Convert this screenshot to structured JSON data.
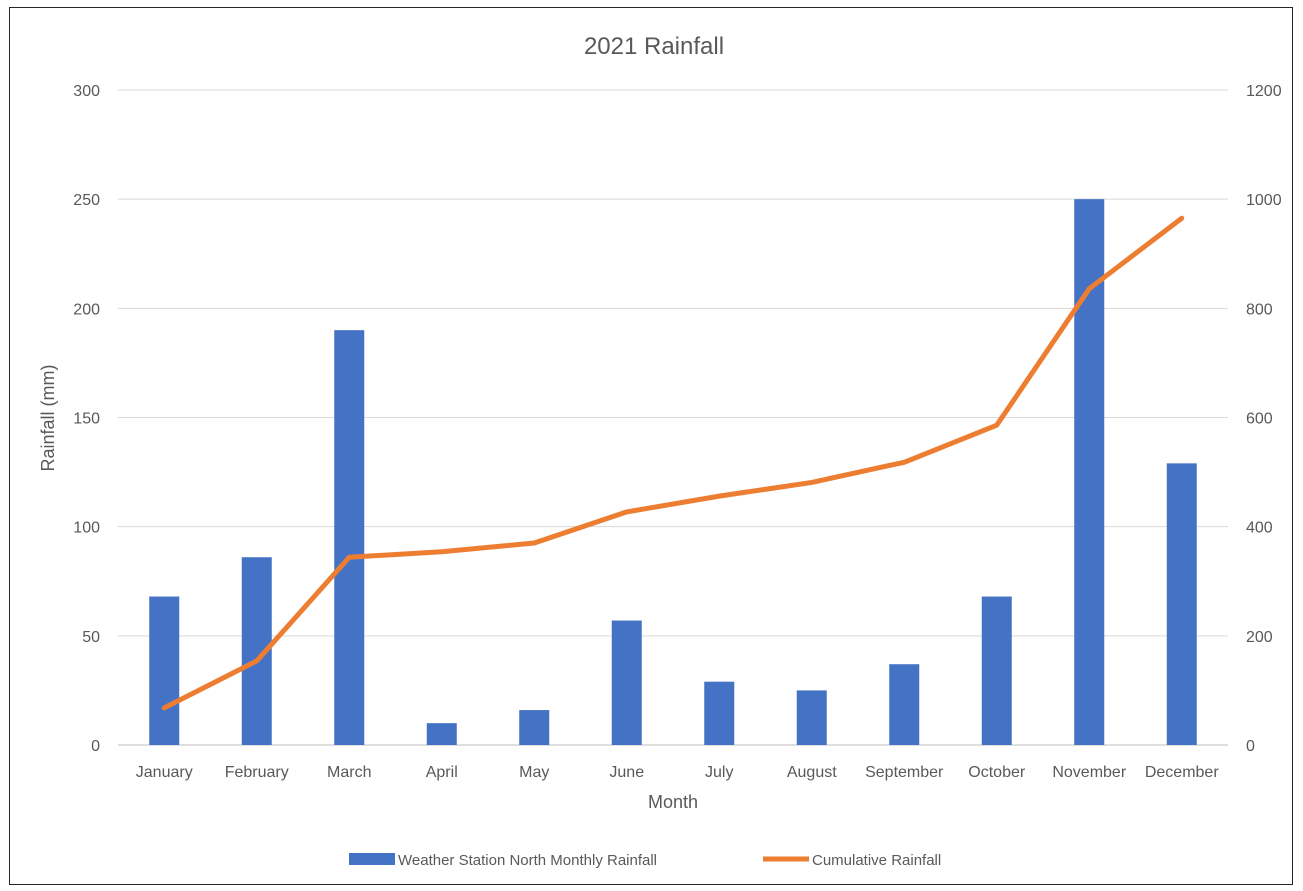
{
  "chart_data": {
    "type": "bar",
    "title": "2021 Rainfall",
    "xlabel": "Month",
    "ylabel": "Rainfall (mm)",
    "y2label": "",
    "categories": [
      "January",
      "February",
      "March",
      "April",
      "May",
      "June",
      "July",
      "August",
      "September",
      "October",
      "November",
      "December"
    ],
    "ylim": [
      0,
      300
    ],
    "y2lim": [
      0,
      1200
    ],
    "y_ticks": [
      "0",
      "50",
      "100",
      "150",
      "200",
      "250",
      "300"
    ],
    "y2_ticks": [
      "0",
      "200",
      "400",
      "600",
      "800",
      "1000",
      "1200"
    ],
    "grid": true,
    "legend_position": "bottom",
    "series": [
      {
        "name": "Weather Station North Monthly Rainfall",
        "type": "bar",
        "axis": "left",
        "color": "#4472C4",
        "values": [
          68,
          86,
          190,
          10,
          16,
          57,
          29,
          25,
          37,
          68,
          250,
          129
        ]
      },
      {
        "name": "Cumulative Rainfall",
        "type": "line",
        "axis": "right",
        "color": "#ED7D31",
        "values": [
          68,
          154,
          344,
          354,
          370,
          427,
          456,
          481,
          518,
          586,
          836,
          965
        ]
      }
    ]
  }
}
